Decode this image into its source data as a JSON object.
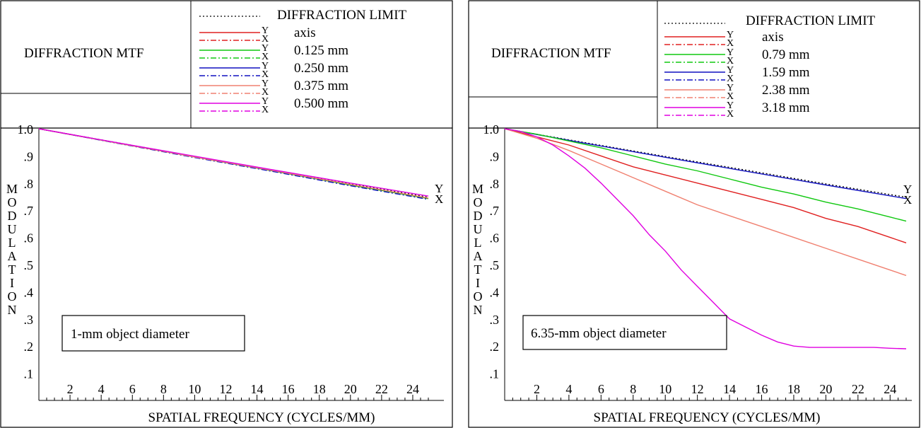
{
  "charts": [
    {
      "header": {
        "title": "DIFFRACTION MTF",
        "diffraction_label": "DIFFRACTION LIMIT",
        "legend": [
          {
            "label": "axis",
            "color": "#e02020"
          },
          {
            "label": "0.125 mm",
            "color": "#10c810"
          },
          {
            "label": "0.250 mm",
            "color": "#1010c0"
          },
          {
            "label": "0.375 mm",
            "color": "#f08070"
          },
          {
            "label": "0.500 mm",
            "color": "#e000e0"
          }
        ],
        "y_tag": "Y",
        "x_tag": "X"
      },
      "annotation": "1-mm object diameter",
      "end_tags": {
        "y": "Y",
        "x": "X"
      }
    },
    {
      "header": {
        "title": "DIFFRACTION MTF",
        "diffraction_label": "DIFFRACTION LIMIT",
        "legend": [
          {
            "label": "axis",
            "color": "#e02020"
          },
          {
            "label": "0.79 mm",
            "color": "#10c810"
          },
          {
            "label": "1.59 mm",
            "color": "#1010c0"
          },
          {
            "label": "2.38 mm",
            "color": "#f08070"
          },
          {
            "label": "3.18 mm",
            "color": "#e000e0"
          }
        ],
        "y_tag": "Y",
        "x_tag": "X"
      },
      "annotation": "6.35-mm object diameter",
      "end_tags": {
        "y": "Y",
        "x": "X"
      }
    }
  ],
  "chart_data": [
    {
      "type": "line",
      "title": "DIFFRACTION MTF",
      "xlabel": "SPATIAL FREQUENCY (CYCLES/MM)",
      "ylabel": "MODULATION",
      "xlim": [
        0,
        25
      ],
      "ylim": [
        0,
        1
      ],
      "x_ticks": [
        "2",
        "4",
        "6",
        "8",
        "10",
        "12",
        "14",
        "16",
        "18",
        "20",
        "22",
        "24"
      ],
      "y_ticks": [
        "1.0",
        ".9",
        ".8",
        ".7",
        ".6",
        ".5",
        ".4",
        ".3",
        ".2",
        ".1"
      ],
      "series": [
        {
          "name": "DIFFRACTION LIMIT",
          "color": "#000000",
          "style": "dotted",
          "x": [
            0,
            5,
            10,
            15,
            20,
            25
          ],
          "y": [
            1.0,
            0.949,
            0.898,
            0.848,
            0.797,
            0.748
          ]
        },
        {
          "name": "axis",
          "color": "#e02020",
          "style": "solid",
          "x": [
            0,
            5,
            10,
            15,
            20,
            25
          ],
          "y": [
            1.0,
            0.948,
            0.896,
            0.845,
            0.793,
            0.743
          ]
        },
        {
          "name": "0.125 mm",
          "color": "#10c810",
          "style": "solid",
          "x": [
            0,
            5,
            10,
            15,
            20,
            25
          ],
          "y": [
            1.0,
            0.948,
            0.896,
            0.845,
            0.793,
            0.743
          ]
        },
        {
          "name": "0.250 mm",
          "color": "#1010c0",
          "style": "dashdot",
          "x": [
            0,
            5,
            10,
            15,
            20,
            25
          ],
          "y": [
            1.0,
            0.947,
            0.894,
            0.843,
            0.79,
            0.74
          ]
        },
        {
          "name": "0.375 mm",
          "color": "#f08070",
          "style": "solid",
          "x": [
            0,
            5,
            10,
            15,
            20,
            25
          ],
          "y": [
            1.0,
            0.948,
            0.896,
            0.846,
            0.795,
            0.745
          ]
        },
        {
          "name": "0.500 mm",
          "color": "#e000e0",
          "style": "solid",
          "x": [
            0,
            5,
            10,
            15,
            20,
            25
          ],
          "y": [
            1.0,
            0.949,
            0.899,
            0.849,
            0.8,
            0.752
          ]
        }
      ]
    },
    {
      "type": "line",
      "title": "DIFFRACTION MTF",
      "xlabel": "SPATIAL FREQUENCY (CYCLES/MM)",
      "ylabel": "MODULATION",
      "xlim": [
        0,
        25
      ],
      "ylim": [
        0,
        1
      ],
      "x_ticks": [
        "2",
        "4",
        "6",
        "8",
        "10",
        "12",
        "14",
        "16",
        "18",
        "20",
        "22",
        "24"
      ],
      "y_ticks": [
        "1.0",
        ".9",
        ".8",
        ".7",
        ".6",
        ".5",
        ".4",
        ".3",
        ".2",
        ".1"
      ],
      "series": [
        {
          "name": "DIFFRACTION LIMIT",
          "color": "#000000",
          "style": "dotted",
          "x": [
            0,
            5,
            10,
            15,
            20,
            25
          ],
          "y": [
            1.0,
            0.949,
            0.898,
            0.848,
            0.797,
            0.748
          ]
        },
        {
          "name": "1.59 mm",
          "color": "#1010c0",
          "style": "solid",
          "x": [
            0,
            5,
            10,
            15,
            20,
            25
          ],
          "y": [
            1.0,
            0.947,
            0.895,
            0.844,
            0.793,
            0.743
          ]
        },
        {
          "name": "0.79 mm",
          "color": "#10c810",
          "style": "solid",
          "x": [
            0,
            2,
            4,
            6,
            8,
            10,
            12,
            14,
            16,
            18,
            20,
            22,
            24,
            25
          ],
          "y": [
            1.0,
            0.98,
            0.955,
            0.93,
            0.9,
            0.87,
            0.845,
            0.815,
            0.785,
            0.76,
            0.73,
            0.705,
            0.675,
            0.66
          ]
        },
        {
          "name": "axis",
          "color": "#e02020",
          "style": "solid",
          "x": [
            0,
            2,
            4,
            6,
            8,
            10,
            12,
            14,
            16,
            18,
            20,
            22,
            24,
            25
          ],
          "y": [
            1.0,
            0.97,
            0.94,
            0.9,
            0.86,
            0.83,
            0.8,
            0.77,
            0.74,
            0.71,
            0.67,
            0.64,
            0.6,
            0.58
          ]
        },
        {
          "name": "2.38 mm",
          "color": "#f08070",
          "style": "solid",
          "x": [
            0,
            2,
            4,
            6,
            8,
            10,
            12,
            14,
            16,
            18,
            20,
            22,
            24,
            25
          ],
          "y": [
            1.0,
            0.965,
            0.92,
            0.87,
            0.82,
            0.77,
            0.72,
            0.68,
            0.64,
            0.6,
            0.56,
            0.52,
            0.48,
            0.46
          ]
        },
        {
          "name": "3.18 mm",
          "color": "#e000e0",
          "style": "solid",
          "x": [
            0,
            1,
            2,
            3,
            4,
            5,
            6,
            7,
            8,
            9,
            10,
            11,
            12,
            13,
            14,
            15,
            16,
            17,
            18,
            19,
            20,
            21,
            22,
            23,
            24,
            25
          ],
          "y": [
            1.0,
            0.99,
            0.97,
            0.94,
            0.9,
            0.855,
            0.8,
            0.74,
            0.68,
            0.61,
            0.55,
            0.48,
            0.42,
            0.36,
            0.3,
            0.27,
            0.24,
            0.215,
            0.2,
            0.195,
            0.195,
            0.195,
            0.195,
            0.195,
            0.192,
            0.19
          ]
        }
      ]
    }
  ]
}
